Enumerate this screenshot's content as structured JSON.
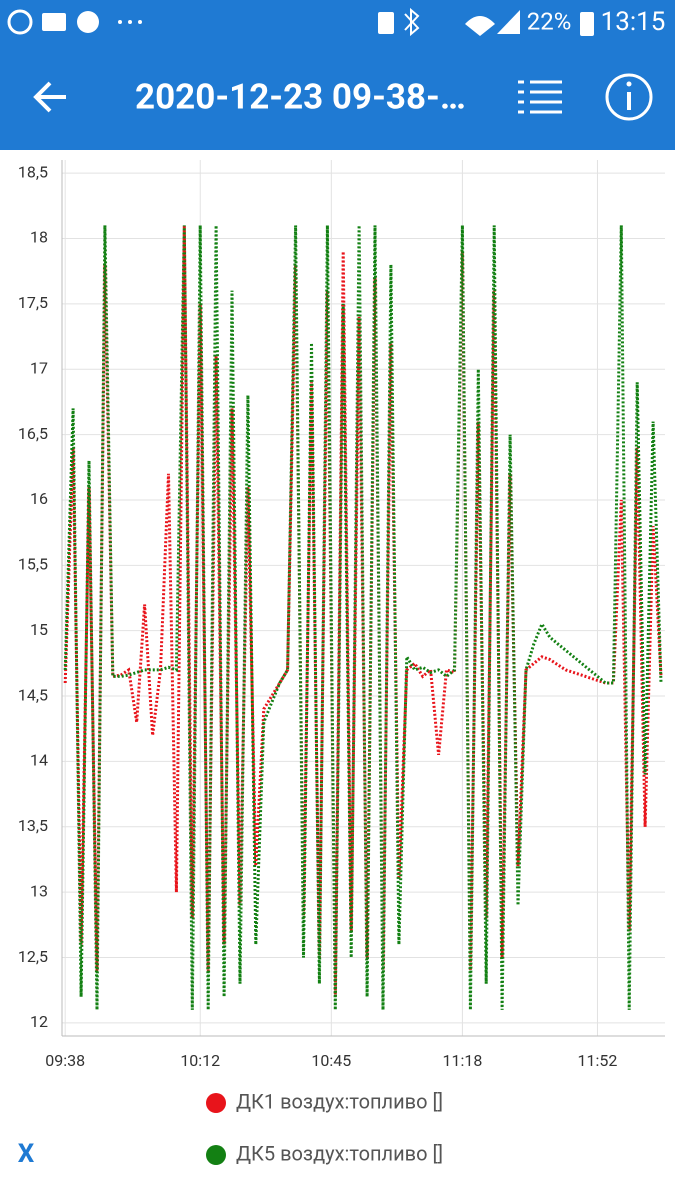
{
  "status_bar": {
    "battery": "22%",
    "time": "13:15"
  },
  "app_bar": {
    "title": "2020-12-23 09-38-…"
  },
  "close_button": "X",
  "chart_data": {
    "type": "line",
    "x": [
      578,
      580,
      582,
      584,
      586,
      588,
      590,
      592,
      594,
      596,
      598,
      600,
      602,
      604,
      606,
      608,
      610,
      612,
      614,
      616,
      618,
      620,
      622,
      624,
      626,
      628,
      630,
      632,
      634,
      636,
      638,
      640,
      642,
      644,
      646,
      648,
      650,
      652,
      654,
      656,
      658,
      660,
      662,
      664,
      666,
      668,
      670,
      672,
      674,
      676,
      678,
      680,
      682,
      684,
      686,
      688,
      690,
      692,
      694,
      696,
      698,
      700,
      702,
      704,
      706,
      708,
      710,
      712,
      714,
      716,
      718,
      720,
      722,
      724,
      726,
      728
    ],
    "series": [
      {
        "name": "ДК1 воздух:топливо []",
        "color": "#e8141b",
        "values": [
          14.6,
          16.4,
          12.6,
          16.1,
          12.4,
          17.8,
          14.65,
          14.66,
          14.7,
          14.3,
          15.2,
          14.2,
          14.7,
          16.2,
          13.0,
          18.1,
          12.8,
          17.5,
          12.4,
          17.1,
          12.6,
          16.7,
          12.9,
          16.1,
          13.2,
          14.4,
          14.5,
          14.6,
          14.7,
          17.8,
          12.8,
          16.9,
          12.5,
          17.6,
          12.2,
          17.9,
          12.7,
          17.4,
          12.5,
          17.7,
          12.4,
          17.2,
          13.1,
          14.7,
          14.75,
          14.65,
          14.7,
          14.05,
          14.7,
          14.68,
          17.9,
          12.4,
          16.6,
          12.8,
          17.6,
          12.5,
          16.2,
          13.2,
          14.7,
          14.75,
          14.8,
          14.78,
          14.74,
          14.7,
          14.68,
          14.66,
          14.64,
          14.62,
          14.6,
          14.6,
          16.0,
          12.7,
          16.4,
          13.5,
          15.8,
          14.65
        ]
      },
      {
        "name": "ДК5 воздух:топливо []",
        "color": "#138013",
        "values": [
          14.7,
          16.7,
          12.2,
          16.3,
          12.1,
          18.1,
          14.65,
          14.65,
          14.66,
          14.68,
          14.7,
          14.7,
          14.7,
          14.72,
          14.7,
          18.1,
          12.1,
          18.1,
          12.1,
          18.1,
          12.2,
          17.6,
          12.3,
          16.8,
          12.6,
          14.3,
          14.45,
          14.6,
          14.7,
          18.1,
          12.5,
          17.2,
          12.3,
          18.1,
          12.1,
          17.5,
          12.5,
          18.1,
          12.2,
          18.1,
          12.1,
          17.8,
          12.6,
          14.8,
          14.7,
          14.72,
          14.68,
          14.7,
          14.65,
          14.7,
          18.1,
          12.1,
          17.0,
          12.3,
          18.1,
          12.1,
          16.5,
          12.9,
          14.7,
          14.9,
          15.05,
          14.95,
          14.9,
          14.85,
          14.8,
          14.75,
          14.7,
          14.65,
          14.6,
          14.6,
          18.1,
          12.1,
          16.9,
          13.9,
          16.6,
          14.6
        ]
      }
    ],
    "xlim": [
      577.2,
      729
    ],
    "xticks": [
      {
        "value": 578,
        "label": "09:38"
      },
      {
        "value": 612,
        "label": "10:12"
      },
      {
        "value": 645,
        "label": "10:45"
      },
      {
        "value": 678,
        "label": "11:18"
      },
      {
        "value": 712,
        "label": "11:52"
      }
    ],
    "ylim": [
      11.9,
      18.6
    ],
    "yticks": [
      12,
      {
        "value": 12.5,
        "label": "12,5"
      },
      13,
      {
        "value": 13.5,
        "label": "13,5"
      },
      14,
      {
        "value": 14.5,
        "label": "14,5"
      },
      15,
      {
        "value": 15.5,
        "label": "15,5"
      },
      16,
      {
        "value": 16.5,
        "label": "16,5"
      },
      17,
      {
        "value": 17.5,
        "label": "17,5"
      },
      18,
      {
        "value": 18.5,
        "label": "18,5"
      }
    ],
    "grid": true
  }
}
